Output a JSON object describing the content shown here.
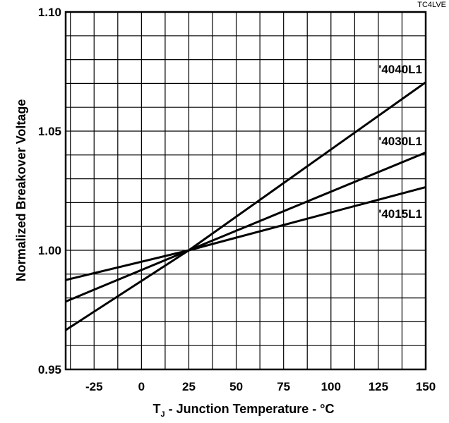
{
  "chart_data": {
    "type": "line",
    "corner_code": "TC4LVE",
    "title": "",
    "xlabel_sub_base": "T",
    "xlabel_subscript": "J",
    "xlabel_rest": " - Junction Temperature - °C",
    "ylabel": "Normalized Breakover Voltage",
    "xlim": [
      -40,
      150
    ],
    "ylim": [
      0.95,
      1.1
    ],
    "x_ticks": [
      -25,
      0,
      25,
      50,
      75,
      100,
      125,
      150
    ],
    "x_tick_labels": [
      "-25",
      "0",
      "25",
      "50",
      "75",
      "100",
      "125",
      "150"
    ],
    "y_ticks": [
      0.95,
      1.0,
      1.05,
      1.1
    ],
    "y_tick_labels": [
      "0.95",
      "1.00",
      "1.05",
      "1.10"
    ],
    "x_grid_step": 12.5,
    "y_grid_step": 0.01,
    "grid": true,
    "series": [
      {
        "name": "'4040L1",
        "points": [
          [
            -40,
            0.9665
          ],
          [
            25,
            1.0
          ],
          [
            150,
            1.0705
          ]
        ]
      },
      {
        "name": "'4030L1",
        "points": [
          [
            -40,
            0.9785
          ],
          [
            25,
            1.0
          ],
          [
            150,
            1.041
          ]
        ]
      },
      {
        "name": "'4015L1",
        "points": [
          [
            -40,
            0.9875
          ],
          [
            25,
            1.0
          ],
          [
            150,
            1.0265
          ]
        ]
      }
    ]
  }
}
